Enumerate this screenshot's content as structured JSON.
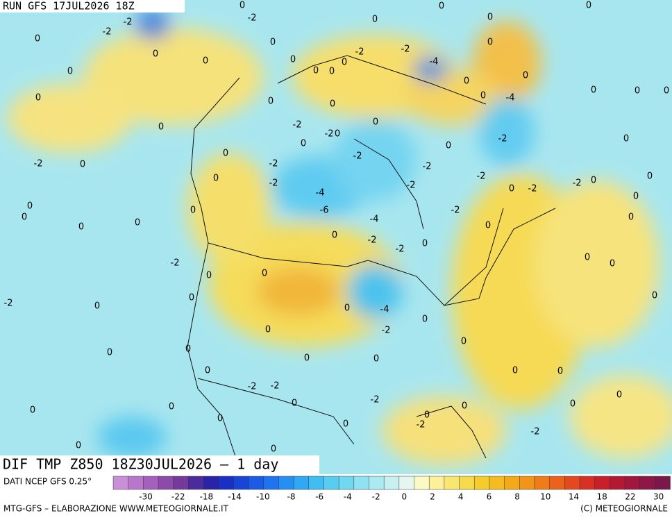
{
  "header": {
    "run": "RUN GFS 17JUL2026 18Z"
  },
  "map": {
    "title": "DIF TMP Z850 18Z30JUL2026 – 1 day",
    "labels": [
      "0",
      "-2",
      "-2",
      "-2",
      "0",
      "0",
      "0",
      "0",
      "0",
      "0",
      "0",
      "0",
      "0",
      "-2",
      "-2",
      "-4",
      "0",
      "0",
      "0",
      "0",
      "0",
      "0",
      "0",
      "0",
      "-4",
      "0",
      "0",
      "0",
      "0",
      "0",
      "0",
      "0",
      "-2",
      "-2",
      "0",
      "0",
      "0",
      "-2",
      "0",
      "0",
      "-2",
      "0",
      "-2",
      "0",
      "-2",
      "-2",
      "-2",
      "0",
      "-2",
      "-2",
      "0",
      "-2",
      "-2",
      "0",
      "0",
      "-4",
      "0",
      "0",
      "0",
      "-6",
      "-2",
      "0",
      "0",
      "-4",
      "0",
      "0",
      "0",
      "0",
      "-2",
      "-2",
      "0",
      "-2",
      "0",
      "0",
      "0",
      "0",
      "0",
      "-2",
      "0",
      "0",
      "0",
      "-4",
      "0",
      "0",
      "-2",
      "0",
      "0",
      "0",
      "0",
      "0",
      "0",
      "0",
      "0",
      "-2",
      "-2",
      "0",
      "-2",
      "0",
      "0",
      "0",
      "0",
      "0",
      "0",
      "0",
      "0",
      "-2",
      "0",
      "0",
      "-2"
    ]
  },
  "legend": {
    "source": "DATI NCEP GFS 0.25°",
    "colors": [
      "#c98fd8",
      "#b877cc",
      "#a560bd",
      "#8e4aab",
      "#74399b",
      "#4c2c9c",
      "#2a23a8",
      "#1b2fc4",
      "#1844d8",
      "#1a5ce6",
      "#1d74ee",
      "#2590f2",
      "#30a8f4",
      "#40bdf2",
      "#56cdf1",
      "#70d8f0",
      "#8fe2f2",
      "#abe9f3",
      "#c7f0f3",
      "#e4f6ef",
      "#fdf9c4",
      "#fcf19a",
      "#f9e66f",
      "#f7da4b",
      "#f5cc2c",
      "#f4bc1e",
      "#f3a918",
      "#f29418",
      "#f07c18",
      "#ec621b",
      "#e4481f",
      "#d93023",
      "#c81f2a",
      "#b51832",
      "#a0163c",
      "#8d1745",
      "#7a184c"
    ],
    "ticks": [
      -30,
      -22,
      -18,
      -14,
      -10,
      -8,
      -6,
      -4,
      -2,
      0,
      2,
      4,
      6,
      8,
      10,
      14,
      18,
      22,
      30
    ]
  },
  "footer": {
    "left": "MTG-GFS – ELABORAZIONE WWW.METEOGIORNALE.IT",
    "right": "(C) METEOGIORNALE"
  }
}
